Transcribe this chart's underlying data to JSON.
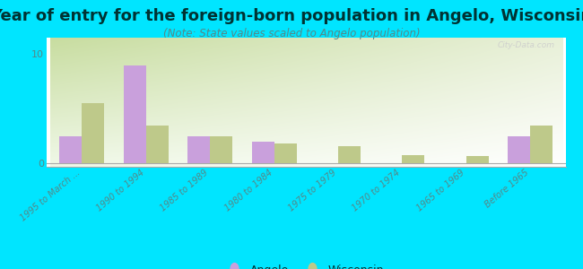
{
  "title": "Year of entry for the foreign-born population in Angelo, Wisconsin",
  "subtitle": "(Note: State values scaled to Angelo population)",
  "categories": [
    "1995 to March ...",
    "1990 to 1994",
    "1985 to 1989",
    "1980 to 1984",
    "1975 to 1979",
    "1970 to 1974",
    "1965 to 1969",
    "Before 1965"
  ],
  "angelo_values": [
    2.5,
    9.0,
    2.5,
    2.0,
    0.0,
    0.0,
    0.0,
    2.5
  ],
  "wisconsin_values": [
    5.5,
    3.5,
    2.5,
    1.8,
    1.6,
    0.8,
    0.7,
    3.5
  ],
  "angelo_color": "#c9a0dc",
  "wisconsin_color": "#bec98a",
  "bg_color_topleft": "#c8dda0",
  "bg_color_topright": "#e8f0d8",
  "bg_color_bottom": "#f8fff0",
  "outer_bg": "#00e5ff",
  "title_color": "#003333",
  "subtitle_color": "#558888",
  "tick_color": "#558888",
  "yticks": [
    0,
    10
  ],
  "ylim": [
    -0.3,
    11.5
  ],
  "bar_width": 0.35,
  "title_fontsize": 13,
  "subtitle_fontsize": 8.5,
  "tick_fontsize": 7,
  "legend_fontsize": 9,
  "watermark": "City-Data.com"
}
